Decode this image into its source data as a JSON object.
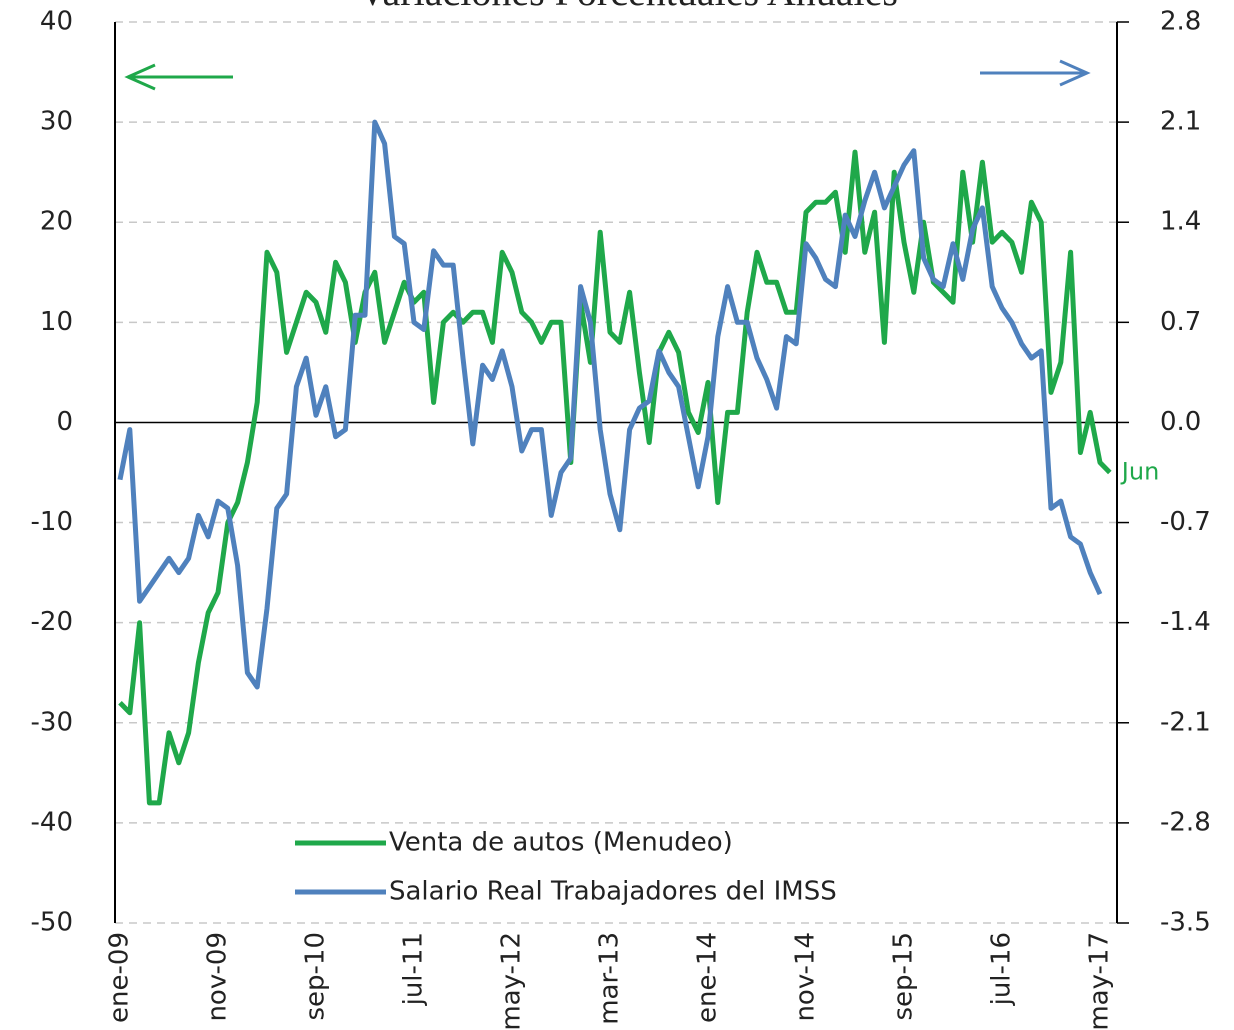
{
  "chart_data": {
    "type": "line",
    "title": "Variaciones Porcentuales Anuales",
    "annotation": "Jun",
    "legend": "lower center",
    "grid": true,
    "categories": [
      "ene-09",
      null,
      null,
      null,
      null,
      null,
      null,
      null,
      null,
      null,
      "nov-09",
      null,
      null,
      null,
      null,
      null,
      null,
      null,
      null,
      null,
      "sep-10",
      null,
      null,
      null,
      null,
      null,
      null,
      null,
      null,
      null,
      "jul-11",
      null,
      null,
      null,
      null,
      null,
      null,
      null,
      null,
      null,
      "may-12",
      null,
      null,
      null,
      null,
      null,
      null,
      null,
      null,
      null,
      "mar-13",
      null,
      null,
      null,
      null,
      null,
      null,
      null,
      null,
      null,
      "ene-14",
      null,
      null,
      null,
      null,
      null,
      null,
      null,
      null,
      null,
      "nov-14",
      null,
      null,
      null,
      null,
      null,
      null,
      null,
      null,
      null,
      "sep-15",
      null,
      null,
      null,
      null,
      null,
      null,
      null,
      null,
      null,
      "jul-16",
      null,
      null,
      null,
      null,
      null,
      null,
      null,
      null,
      null,
      "may-17",
      null
    ],
    "ylim": [
      -50,
      40
    ],
    "yticks": [
      -50,
      -40,
      -30,
      -20,
      -10,
      0,
      10,
      20,
      30,
      40
    ],
    "y2lim": [
      -3.5,
      2.8
    ],
    "y2ticks": [
      -3.5,
      -2.8,
      -2.1,
      -1.4,
      -0.7,
      {
        "value": 0,
        "label": "0.0"
      },
      0.7,
      1.4,
      2.1,
      2.8
    ],
    "series": [
      {
        "name": "Venta de autos (Menudeo)",
        "color": "#1fa84a",
        "values": [
          -28,
          -29,
          -20,
          -38,
          -38,
          -31,
          -34,
          -31,
          -24,
          -19,
          -17,
          -10,
          -8,
          -4,
          2,
          17,
          15,
          7,
          10,
          13,
          12,
          9,
          16,
          14,
          8,
          13,
          15,
          8,
          11,
          14,
          12,
          13,
          2,
          10,
          11,
          10,
          11,
          11,
          8,
          17,
          15,
          11,
          10,
          8,
          10,
          10,
          -4,
          12,
          6,
          19,
          9,
          8,
          13,
          5,
          -2,
          7,
          9,
          7,
          1,
          -1,
          4,
          -8,
          1,
          1,
          11,
          17,
          14,
          14,
          11,
          11,
          21,
          22,
          22,
          23,
          17,
          27,
          17,
          21,
          8,
          25,
          18,
          13,
          20,
          14,
          13,
          12,
          25,
          18,
          26,
          18,
          19,
          18,
          15,
          22,
          20,
          3,
          6,
          17,
          -3,
          1,
          -4,
          -5
        ]
      },
      {
        "name": "Salario Real Trabajadores del IMSS",
        "color": "#4f81bd",
        "axis": "y2",
        "values": [
          -0.4,
          -0.05,
          -1.25,
          -1.15,
          -1.05,
          -0.95,
          -1.05,
          -0.95,
          -0.65,
          -0.8,
          -0.55,
          -0.6,
          -1.0,
          -1.75,
          -1.85,
          -1.3,
          -0.6,
          -0.5,
          0.25,
          0.45,
          0.05,
          0.25,
          -0.1,
          -0.05,
          0.75,
          0.75,
          2.1,
          1.95,
          1.3,
          1.25,
          0.7,
          0.65,
          1.2,
          1.1,
          1.1,
          0.45,
          -0.15,
          0.4,
          0.3,
          0.5,
          0.25,
          -0.2,
          -0.05,
          -0.05,
          -0.65,
          -0.35,
          -0.25,
          0.95,
          0.7,
          -0.05,
          -0.5,
          -0.75,
          -0.05,
          0.1,
          0.15,
          0.5,
          0.35,
          0.25,
          -0.1,
          -0.45,
          -0.1,
          0.6,
          0.95,
          0.7,
          0.7,
          0.45,
          0.3,
          0.1,
          0.6,
          0.55,
          1.25,
          1.15,
          1.0,
          0.95,
          1.45,
          1.3,
          1.55,
          1.75,
          1.5,
          1.65,
          1.8,
          1.9,
          1.15,
          1.0,
          0.95,
          1.25,
          1.0,
          1.35,
          1.5,
          0.95,
          0.8,
          0.7,
          0.55,
          0.45,
          0.5,
          -0.6,
          -0.55,
          -0.8,
          -0.85,
          -1.05,
          -1.2,
          null
        ]
      }
    ]
  }
}
